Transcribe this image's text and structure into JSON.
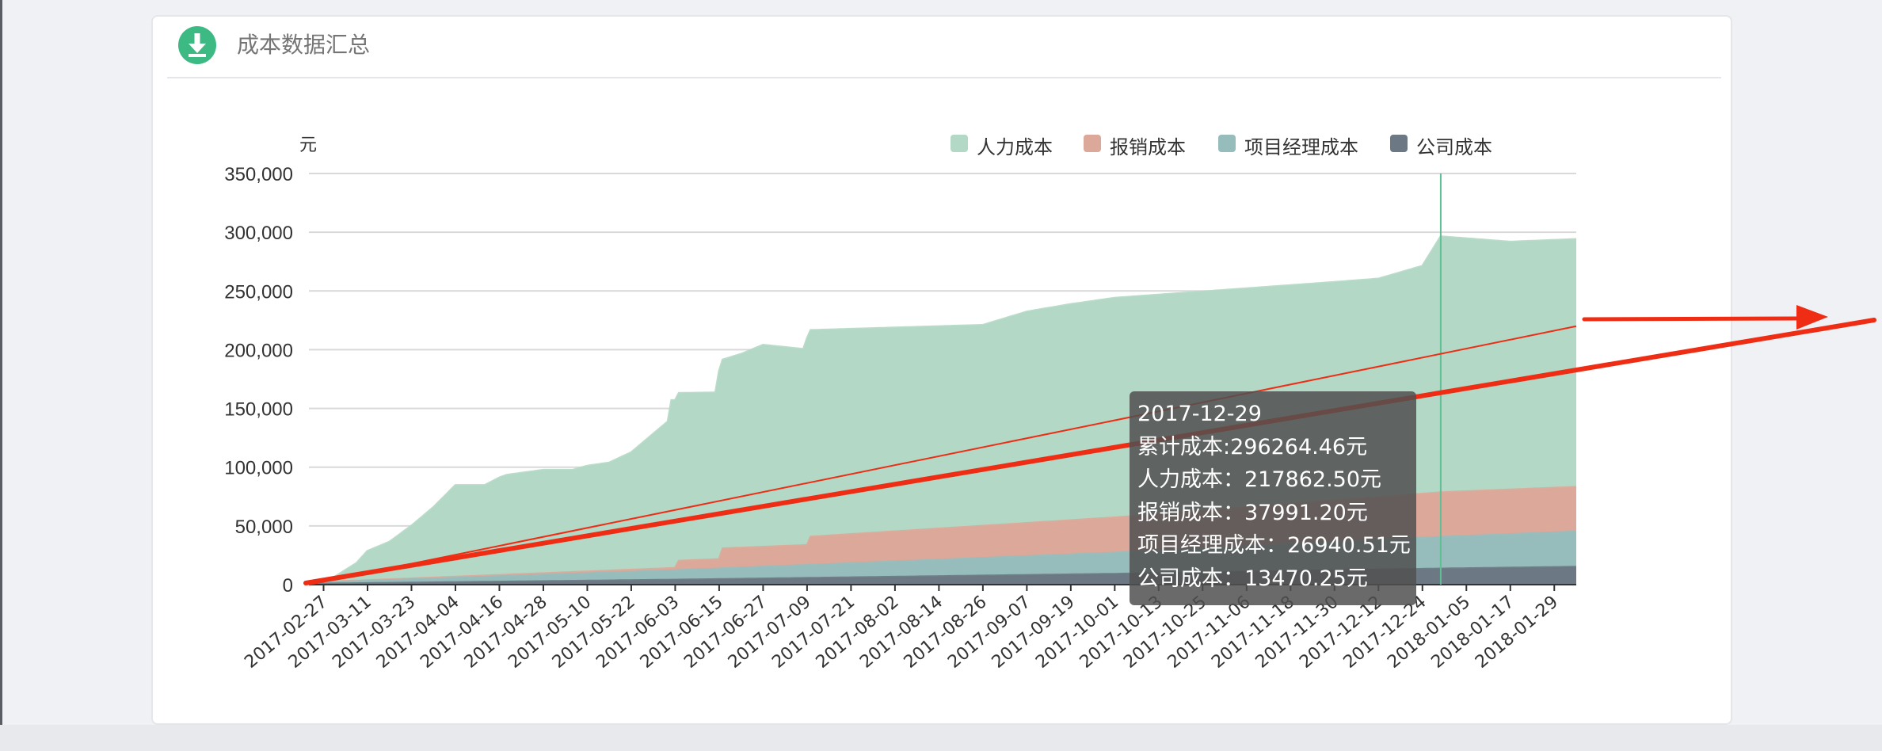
{
  "panel": {
    "title": "成本数据汇总",
    "icon": "download-icon"
  },
  "colors": {
    "labor": "#b3d8c5",
    "reimb": "#dba899",
    "pm": "#96bcbc",
    "company": "#6c7883",
    "axis": "#333333",
    "grid": "#d9d9d9",
    "cursor": "#5fbf95",
    "arrow": "#ee2d14"
  },
  "chart_data": {
    "type": "area",
    "stacked": true,
    "yunit": "元",
    "ylim": [
      0,
      350000
    ],
    "yticks": [
      "0",
      "50,000",
      "100,000",
      "150,000",
      "200,000",
      "250,000",
      "300,000",
      "350,000"
    ],
    "x_ticks": [
      "2017-02-27",
      "2017-03-11",
      "2017-03-23",
      "2017-04-04",
      "2017-04-16",
      "2017-04-28",
      "2017-05-10",
      "2017-05-22",
      "2017-06-03",
      "2017-06-15",
      "2017-06-27",
      "2017-07-09",
      "2017-07-21",
      "2017-08-02",
      "2017-08-14",
      "2017-08-26",
      "2017-09-07",
      "2017-09-19",
      "2017-10-01",
      "2017-10-13",
      "2017-10-25",
      "2017-11-06",
      "2017-11-18",
      "2017-11-30",
      "2017-12-12",
      "2017-12-24",
      "2018-01-05",
      "2018-01-17",
      "2018-01-29"
    ],
    "x_start": "2017-02-23",
    "x_end": "2018-02-04",
    "legend": [
      {
        "name": "人力成本",
        "color": "#b3d8c5"
      },
      {
        "name": "报销成本",
        "color": "#dba899"
      },
      {
        "name": "项目经理成本",
        "color": "#96bcbc"
      },
      {
        "name": "公司成本",
        "color": "#6c7883"
      }
    ],
    "series": [
      {
        "name": "公司成本",
        "x": [
          "2017-02-23",
          "2017-06-03",
          "2017-10-01",
          "2017-12-29",
          "2018-02-04"
        ],
        "values": [
          500,
          4000,
          9000,
          13470,
          15000
        ]
      },
      {
        "name": "项目经理成本",
        "x": [
          "2017-02-23",
          "2017-06-03",
          "2017-10-01",
          "2017-12-29",
          "2018-02-04"
        ],
        "values": [
          800,
          8000,
          18000,
          26941,
          30000
        ]
      },
      {
        "name": "报销成本",
        "x": [
          "2017-02-23",
          "2017-06-03",
          "2017-06-04",
          "2017-06-15",
          "2017-06-16",
          "2017-07-09",
          "2017-07-10",
          "2017-10-01",
          "2017-12-29",
          "2018-02-04"
        ],
        "values": [
          300,
          2000,
          8000,
          8000,
          17000,
          17000,
          24000,
          30000,
          37991,
          38000
        ]
      },
      {
        "name": "人力成本",
        "x": [
          "2017-02-23",
          "2017-03-02",
          "2017-03-08",
          "2017-03-11",
          "2017-03-17",
          "2017-03-23",
          "2017-03-29",
          "2017-04-04",
          "2017-04-12",
          "2017-04-16",
          "2017-04-18",
          "2017-04-28",
          "2017-05-06",
          "2017-05-10",
          "2017-05-16",
          "2017-05-22",
          "2017-05-28",
          "2017-06-01",
          "2017-06-02",
          "2017-06-14",
          "2017-06-15",
          "2017-06-21",
          "2017-06-27",
          "2017-07-08",
          "2017-07-09",
          "2017-08-26",
          "2017-09-07",
          "2017-09-19",
          "2017-10-01",
          "2017-11-30",
          "2017-12-12",
          "2017-12-24",
          "2017-12-29",
          "2018-01-17",
          "2018-02-04"
        ],
        "values": [
          500,
          4000,
          15000,
          25000,
          32000,
          45000,
          60000,
          78000,
          77000,
          83000,
          85000,
          88000,
          87000,
          90000,
          92000,
          100000,
          115000,
          125000,
          143000,
          142000,
          160000,
          165000,
          172000,
          167000,
          176000,
          171000,
          180000,
          184000,
          187000,
          186000,
          186000,
          194000,
          217863,
          211000,
          211000
        ]
      }
    ],
    "cursor_x": "2017-12-29",
    "tooltip": {
      "date": "2017-12-29",
      "total": "累计成本:296264.46元",
      "labor": "人力成本：217862.50元",
      "reimb": "报销成本：37991.20元",
      "pm": "项目经理成本：26940.51元",
      "company": "公司成本：13470.25元"
    },
    "trend_line": {
      "x": [
        "2017-02-23",
        "2018-02-04"
      ],
      "values": [
        0,
        220000
      ]
    }
  }
}
